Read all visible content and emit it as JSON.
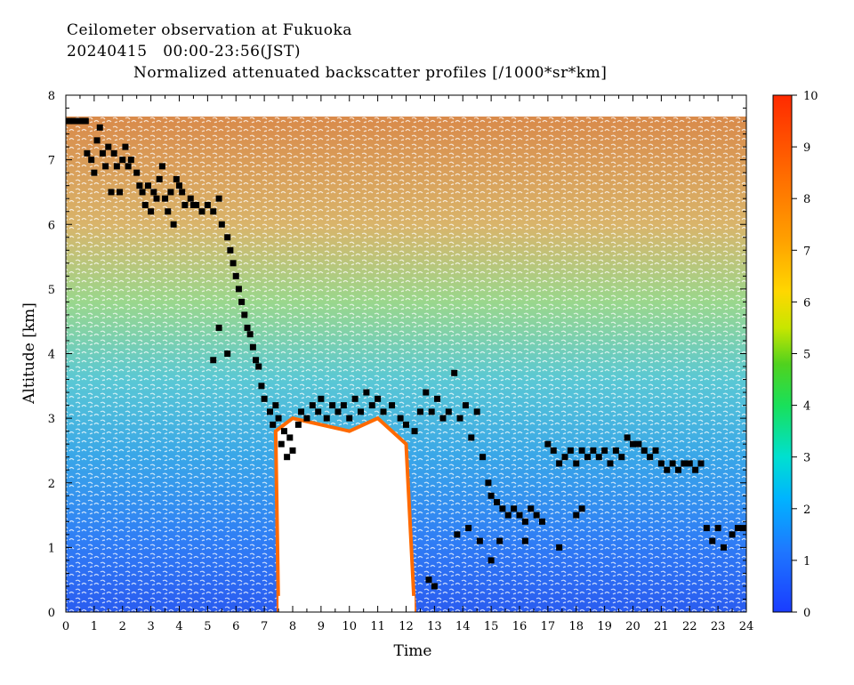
{
  "chart_data": {
    "type": "heatmap",
    "title_line1": "Ceilometer observation at Fukuoka",
    "title_line2": "20240415   00:00-23:56(JST)",
    "title_line3": "Normalized attenuated backscatter profiles [/1000*sr*km]",
    "xlabel": "Time",
    "ylabel": "Altitude [km]",
    "xlim": [
      0,
      24
    ],
    "ylim": [
      0,
      8
    ],
    "x_ticks": [
      "0",
      "1",
      "2",
      "3",
      "4",
      "5",
      "6",
      "7",
      "8",
      "9",
      "10",
      "11",
      "12",
      "13",
      "14",
      "15",
      "16",
      "17",
      "18",
      "19",
      "20",
      "21",
      "22",
      "23",
      "24"
    ],
    "y_ticks": [
      "0",
      "1",
      "2",
      "3",
      "4",
      "5",
      "6",
      "7",
      "8"
    ],
    "colorbar": {
      "range": [
        0,
        10
      ],
      "ticks": [
        "0",
        "1",
        "2",
        "3",
        "4",
        "5",
        "6",
        "7",
        "8",
        "9",
        "10"
      ],
      "colors": [
        "#1a3cff",
        "#1e90ff",
        "#00d5ff",
        "#19e07a",
        "#3cd21e",
        "#d2e600",
        "#ffd700",
        "#ff8c00",
        "#ff5a00",
        "#ff2a00"
      ]
    },
    "cloud_base_heights": [
      [
        0.1,
        7.6
      ],
      [
        0.3,
        7.6
      ],
      [
        0.5,
        7.6
      ],
      [
        0.7,
        7.6
      ],
      [
        0.75,
        7.1
      ],
      [
        0.9,
        7.0
      ],
      [
        1.0,
        6.8
      ],
      [
        1.1,
        7.3
      ],
      [
        1.2,
        7.5
      ],
      [
        1.3,
        7.1
      ],
      [
        1.4,
        6.9
      ],
      [
        1.5,
        7.2
      ],
      [
        1.6,
        6.5
      ],
      [
        1.7,
        7.1
      ],
      [
        1.8,
        6.9
      ],
      [
        1.9,
        6.5
      ],
      [
        2.0,
        7.0
      ],
      [
        2.1,
        7.2
      ],
      [
        2.2,
        6.9
      ],
      [
        2.3,
        7.0
      ],
      [
        2.5,
        6.8
      ],
      [
        2.6,
        6.6
      ],
      [
        2.7,
        6.5
      ],
      [
        2.8,
        6.3
      ],
      [
        2.9,
        6.6
      ],
      [
        3.0,
        6.2
      ],
      [
        3.1,
        6.5
      ],
      [
        3.2,
        6.4
      ],
      [
        3.3,
        6.7
      ],
      [
        3.4,
        6.9
      ],
      [
        3.5,
        6.4
      ],
      [
        3.6,
        6.2
      ],
      [
        3.7,
        6.5
      ],
      [
        3.8,
        6.0
      ],
      [
        3.9,
        6.7
      ],
      [
        4.0,
        6.6
      ],
      [
        4.1,
        6.5
      ],
      [
        4.2,
        6.3
      ],
      [
        4.4,
        6.4
      ],
      [
        4.5,
        6.3
      ],
      [
        4.6,
        6.3
      ],
      [
        4.8,
        6.2
      ],
      [
        5.0,
        6.3
      ],
      [
        5.2,
        6.2
      ],
      [
        5.4,
        6.4
      ],
      [
        5.5,
        6.0
      ],
      [
        5.7,
        5.8
      ],
      [
        5.8,
        5.6
      ],
      [
        5.9,
        5.4
      ],
      [
        6.0,
        5.2
      ],
      [
        6.1,
        5.0
      ],
      [
        6.2,
        4.8
      ],
      [
        6.3,
        4.6
      ],
      [
        6.4,
        4.4
      ],
      [
        6.5,
        4.3
      ],
      [
        6.6,
        4.1
      ],
      [
        6.7,
        3.9
      ],
      [
        6.8,
        3.8
      ],
      [
        6.9,
        3.5
      ],
      [
        7.0,
        3.3
      ],
      [
        7.2,
        3.1
      ],
      [
        7.3,
        2.9
      ],
      [
        7.5,
        3.0
      ],
      [
        7.7,
        2.8
      ],
      [
        7.9,
        2.7
      ],
      [
        8.0,
        2.5
      ],
      [
        8.2,
        2.9
      ],
      [
        8.3,
        3.1
      ],
      [
        8.5,
        3.0
      ],
      [
        8.7,
        3.2
      ],
      [
        8.9,
        3.1
      ],
      [
        9.0,
        3.3
      ],
      [
        9.2,
        3.0
      ],
      [
        9.4,
        3.2
      ],
      [
        9.6,
        3.1
      ],
      [
        9.8,
        3.2
      ],
      [
        10.0,
        3.0
      ],
      [
        10.2,
        3.3
      ],
      [
        10.4,
        3.1
      ],
      [
        10.6,
        3.4
      ],
      [
        10.8,
        3.2
      ],
      [
        11.0,
        3.3
      ],
      [
        11.2,
        3.1
      ],
      [
        11.5,
        3.2
      ],
      [
        11.8,
        3.0
      ],
      [
        12.0,
        2.9
      ],
      [
        12.3,
        2.8
      ],
      [
        12.5,
        3.1
      ],
      [
        12.7,
        3.4
      ],
      [
        12.9,
        3.1
      ],
      [
        13.1,
        3.3
      ],
      [
        13.3,
        3.0
      ],
      [
        13.5,
        3.1
      ],
      [
        13.7,
        3.7
      ],
      [
        13.9,
        3.0
      ],
      [
        14.1,
        3.2
      ],
      [
        14.3,
        2.7
      ],
      [
        14.5,
        3.1
      ],
      [
        14.7,
        2.4
      ],
      [
        14.9,
        2.0
      ],
      [
        15.0,
        1.8
      ],
      [
        15.2,
        1.7
      ],
      [
        15.4,
        1.6
      ],
      [
        15.6,
        1.5
      ],
      [
        15.8,
        1.6
      ],
      [
        16.0,
        1.5
      ],
      [
        16.2,
        1.4
      ],
      [
        16.4,
        1.6
      ],
      [
        16.6,
        1.5
      ],
      [
        16.8,
        1.4
      ],
      [
        17.0,
        2.6
      ],
      [
        17.2,
        2.5
      ],
      [
        17.4,
        2.3
      ],
      [
        17.6,
        2.4
      ],
      [
        17.8,
        2.5
      ],
      [
        18.0,
        2.3
      ],
      [
        18.2,
        2.5
      ],
      [
        18.4,
        2.4
      ],
      [
        18.6,
        2.5
      ],
      [
        18.8,
        2.4
      ],
      [
        19.0,
        2.5
      ],
      [
        19.2,
        2.3
      ],
      [
        19.4,
        2.5
      ],
      [
        19.6,
        2.4
      ],
      [
        19.8,
        2.7
      ],
      [
        20.0,
        2.6
      ],
      [
        20.2,
        2.6
      ],
      [
        20.4,
        2.5
      ],
      [
        20.6,
        2.4
      ],
      [
        20.8,
        2.5
      ],
      [
        21.0,
        2.3
      ],
      [
        21.2,
        2.2
      ],
      [
        21.4,
        2.3
      ],
      [
        21.6,
        2.2
      ],
      [
        21.8,
        2.3
      ],
      [
        22.0,
        2.3
      ],
      [
        22.2,
        2.2
      ],
      [
        22.4,
        2.3
      ],
      [
        22.6,
        1.3
      ],
      [
        22.8,
        1.1
      ],
      [
        23.0,
        1.3
      ],
      [
        23.2,
        1.0
      ],
      [
        23.5,
        1.2
      ],
      [
        23.7,
        1.3
      ],
      [
        23.9,
        1.3
      ],
      [
        13.0,
        0.4
      ],
      [
        12.8,
        0.5
      ],
      [
        13.8,
        1.2
      ],
      [
        14.2,
        1.3
      ],
      [
        14.6,
        1.1
      ],
      [
        15.0,
        0.8
      ],
      [
        15.3,
        1.1
      ],
      [
        16.2,
        1.1
      ],
      [
        17.4,
        1.0
      ],
      [
        18.0,
        1.5
      ],
      [
        18.2,
        1.6
      ],
      [
        5.2,
        3.9
      ],
      [
        5.4,
        4.4
      ],
      [
        5.7,
        4.0
      ],
      [
        7.4,
        3.2
      ],
      [
        7.6,
        2.6
      ],
      [
        7.8,
        2.4
      ]
    ]
  }
}
